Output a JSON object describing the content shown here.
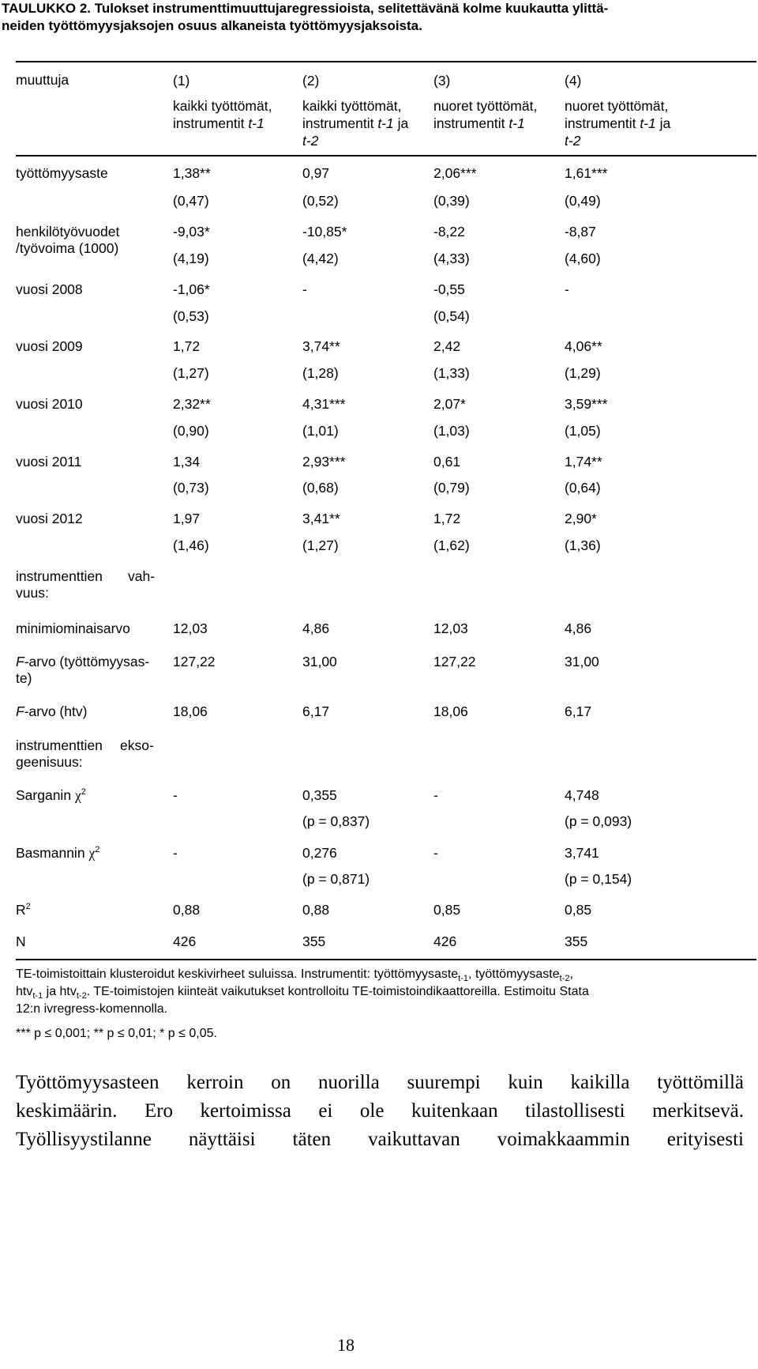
{
  "caption": {
    "line1": "TAULUKKO 2. Tulokset instrumenttimuuttujaregressioista, selitettävänä kolme kuukautta ylittä-",
    "line2": "neiden työttömyysjaksojen osuus alkaneista työttömyysjaksoista."
  },
  "header": {
    "variable_label": "muuttuja",
    "columns": [
      {
        "number": "(1)",
        "line1": "kaikki työttömät,",
        "line2_prefix": "instrumentit ",
        "line2_italic": "t-1",
        "line2_suffix": "",
        "line3": ""
      },
      {
        "number": "(2)",
        "line1": "kaikki työttömät,",
        "line2_prefix": "instrumentit ",
        "line2_italic": "t-1",
        "line2_suffix": " ja",
        "line3": "t-2"
      },
      {
        "number": "(3)",
        "line1": "nuoret työttömät,",
        "line2_prefix": "instrumentit ",
        "line2_italic": "t-1",
        "line2_suffix": "",
        "line3": ""
      },
      {
        "number": "(4)",
        "line1": "nuoret työttömät,",
        "line2_prefix": "instrumentit ",
        "line2_italic": "t-1",
        "line2_suffix": " ja",
        "line3": "t-2"
      }
    ]
  },
  "rows": [
    {
      "label": [
        "työttömyysaste"
      ],
      "coef": [
        "1,38**",
        "0,97",
        "2,06***",
        "1,61***"
      ],
      "se": [
        "(0,47)",
        "(0,52)",
        "(0,39)",
        "(0,49)"
      ]
    },
    {
      "label": [
        "henkilötyövuodet",
        "/työvoima (1000)"
      ],
      "coef": [
        "-9,03*",
        "-10,85*",
        "-8,22",
        "-8,87"
      ],
      "se": [
        "(4,19)",
        "(4,42)",
        "(4,33)",
        "(4,60)"
      ]
    },
    {
      "label": [
        "vuosi 2008"
      ],
      "coef": [
        "-1,06*",
        "-",
        "-0,55",
        "-"
      ],
      "se": [
        "(0,53)",
        "",
        "(0,54)",
        ""
      ]
    },
    {
      "label": [
        "vuosi 2009"
      ],
      "coef": [
        "1,72",
        "3,74**",
        "2,42",
        "4,06**"
      ],
      "se": [
        "(1,27)",
        "(1,28)",
        "(1,33)",
        "(1,29)"
      ]
    },
    {
      "label": [
        "vuosi 2010"
      ],
      "coef": [
        "2,32**",
        "4,31***",
        "2,07*",
        "3,59***"
      ],
      "se": [
        "(0,90)",
        "(1,01)",
        "(1,03)",
        "(1,05)"
      ]
    },
    {
      "label": [
        "vuosi 2011"
      ],
      "coef": [
        "1,34",
        "2,93***",
        "0,61",
        "1,74**"
      ],
      "se": [
        "(0,73)",
        "(0,68)",
        "(0,79)",
        "(0,64)"
      ]
    },
    {
      "label": [
        "vuosi 2012"
      ],
      "coef": [
        "1,97",
        "3,41**",
        "1,72",
        "2,90*"
      ],
      "se": [
        "(1,46)",
        "(1,27)",
        "(1,62)",
        "(1,36)"
      ]
    }
  ],
  "strength_section": {
    "label_a": "instrumenttien",
    "label_b": "vah-",
    "label_c": "vuus:",
    "min_eigenvalue": {
      "label": "minimiominaisarvo",
      "values": [
        "12,03",
        "4,86",
        "12,03",
        "4,86"
      ]
    },
    "f_unemployment": {
      "label_prefix": "F",
      "label_line1": "-arvo (työttömyysas-",
      "label_line2": "te)",
      "values": [
        "127,22",
        "31,00",
        "127,22",
        "31,00"
      ]
    },
    "f_htv": {
      "label_prefix": "F",
      "label_rest": "-arvo (htv)",
      "values": [
        "18,06",
        "6,17",
        "18,06",
        "6,17"
      ]
    }
  },
  "exogeneity_section": {
    "label_a": "instrumenttien",
    "label_b": "ekso-",
    "label_c": "geenisuus:",
    "sargan": {
      "label": "Sarganin",
      "symbol": "χ",
      "sup": "2",
      "values": [
        "-",
        "0,355",
        "-",
        "4,748"
      ],
      "pvalues": [
        "",
        "(p = 0,837)",
        "",
        "(p = 0,093)"
      ]
    },
    "basmann": {
      "label": "Basmannin",
      "symbol": "χ",
      "sup": "2",
      "values": [
        "-",
        "0,276",
        "-",
        "3,741"
      ],
      "pvalues": [
        "",
        "(p = 0,871)",
        "",
        "(p = 0,154)"
      ]
    }
  },
  "fit_rows": [
    {
      "label": "R",
      "sup": "2",
      "values": [
        "0,88",
        "0,88",
        "0,85",
        "0,85"
      ]
    },
    {
      "label": "N",
      "sup": "",
      "values": [
        "426",
        "355",
        "426",
        "355"
      ]
    }
  ],
  "notes": {
    "line1_a": "TE-toimistoittain klusteroidut keskivirheet suluissa. Instrumentit: työttömyysaste",
    "line1_sub1": "t-1",
    "line1_b": ", työttömyysaste",
    "line1_sub2": "t-2",
    "line1_c": ",",
    "line2_a": "htv",
    "line2_sub1": "t-1",
    "line2_b": " ja htv",
    "line2_sub2": "t-2",
    "line2_c": ". TE-toimistojen kiinteät vaikutukset kontrolloitu TE-toimistoindikaattoreilla. Estimoitu Stata",
    "line3": "12:n ivregress-komennolla.",
    "significance": "*** p ≤ 0,001; ** p ≤ 0,01; * p ≤ 0,05."
  },
  "body_text": [
    "Työttömyysasteen kerroin on nuorilla suurempi kuin kaikilla työttömillä",
    "keskimäärin. Ero kertoimissa ei ole kuitenkaan tilastollisesti merkitsevä.",
    "Työllisyystilanne näyttäisi täten vaikuttavan voimakkaammin erityisesti"
  ],
  "page_number": "18"
}
